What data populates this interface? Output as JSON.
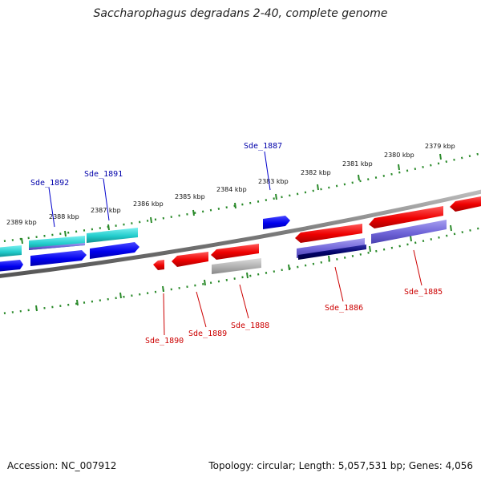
{
  "title": "Saccharophagus degradans 2-40, complete genome",
  "accession": "Accession: NC_007912",
  "summary": "Topology: circular; Length: 5,057,531 bp; Genes: 4,056",
  "colors": {
    "backbone": "#7a7a7a",
    "tick_track": "#2a8a2a",
    "forward_cds": "#0000ee",
    "reverse_cds": "#ee0000",
    "forward_label": "#0000aa",
    "reverse_label": "#cc0000",
    "cyan": "#22cccc",
    "lavender": "#6f64d8",
    "gray": "#b0b0b0",
    "navy": "#000066"
  },
  "kbp_labels": [
    "2389 kbp",
    "2388 kbp",
    "2387 kbp",
    "2386 kbp",
    "2385 kbp",
    "2384 kbp",
    "2383 kbp",
    "2382 kbp",
    "2381 kbp",
    "2380 kbp",
    "2379 kbp"
  ],
  "gene_labels": {
    "forward": [
      "Sde_1892",
      "Sde_1891",
      "Sde_1887"
    ],
    "reverse": [
      "Sde_1890",
      "Sde_1889",
      "Sde_1888",
      "Sde_1886",
      "Sde_1885"
    ]
  }
}
